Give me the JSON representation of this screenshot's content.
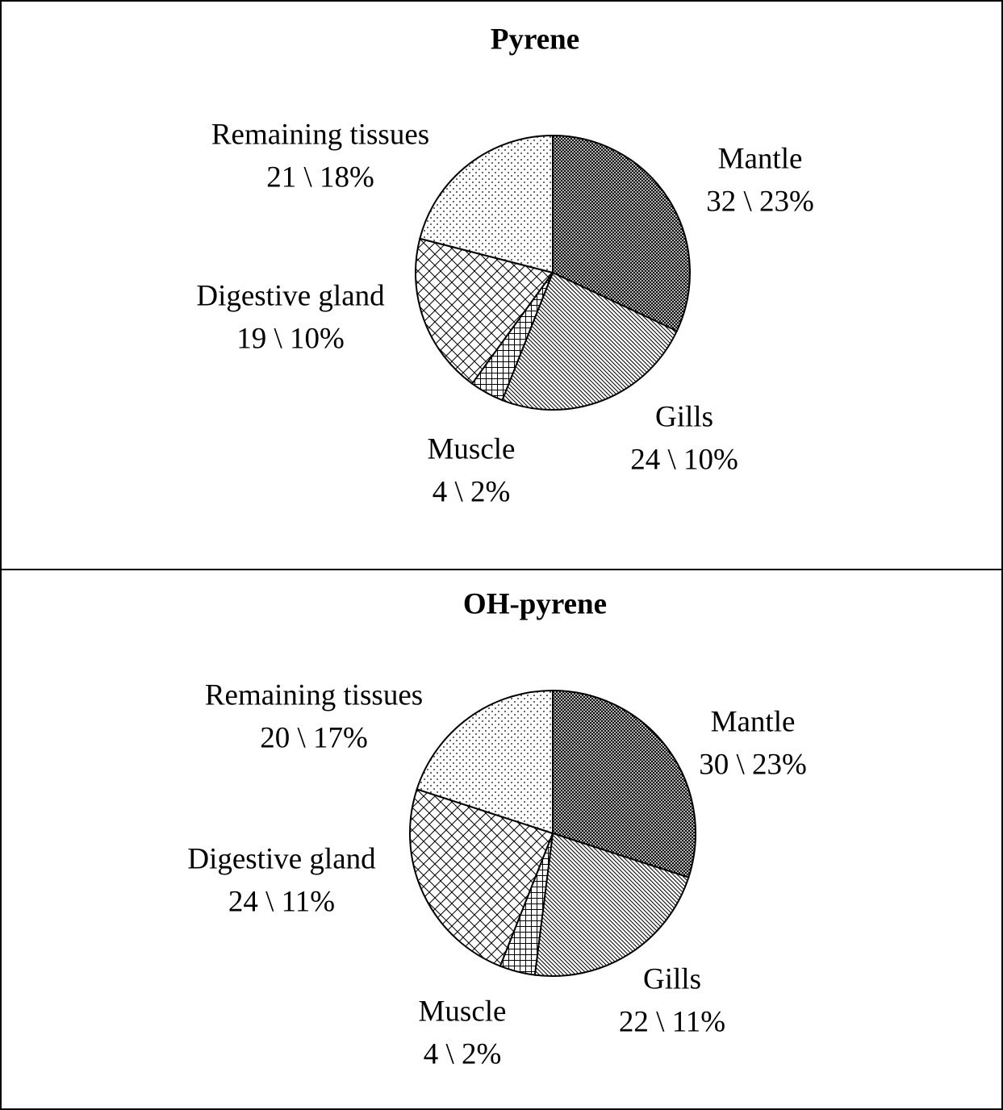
{
  "chart_data": [
    {
      "type": "pie",
      "title": "Pyrene",
      "categories": [
        "Mantle",
        "Gills",
        "Muscle",
        "Digestive gland",
        "Remaining tissues"
      ],
      "values": [
        32,
        24,
        4,
        19,
        21
      ],
      "value_labels": [
        "32 \\ 23%",
        "24 \\ 10%",
        "4 \\ 2%",
        "19 \\ 10%",
        "21 \\ 18%"
      ]
    },
    {
      "type": "pie",
      "title": "OH-pyrene",
      "categories": [
        "Mantle",
        "Gills",
        "Muscle",
        "Digestive gland",
        "Remaining tissues"
      ],
      "values": [
        30,
        22,
        4,
        24,
        20
      ],
      "value_labels": [
        "30 \\ 23%",
        "22 \\ 11%",
        "4 \\ 2%",
        "24 \\ 11%",
        "20 \\ 17%"
      ]
    }
  ]
}
